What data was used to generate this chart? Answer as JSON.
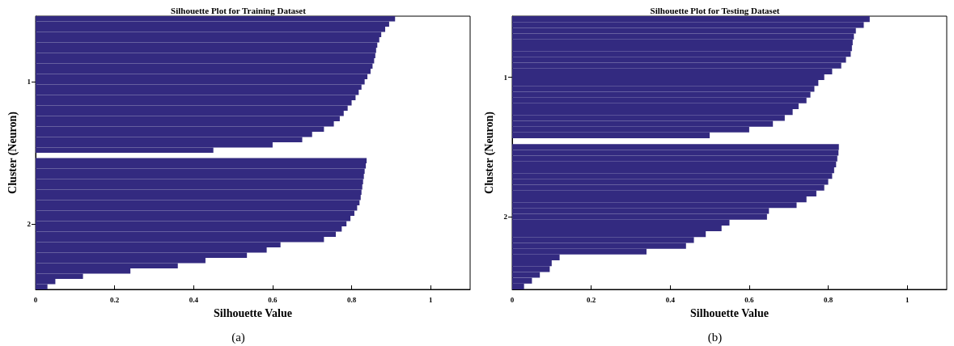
{
  "chart_data": [
    {
      "type": "bar",
      "orientation": "horizontal",
      "title": "Silhouette Plot for Training Dataset",
      "xlabel": "Silhouette Value",
      "ylabel": "Cluster (Neuron)",
      "annotations": [
        "(a)"
      ],
      "categories": [
        null,
        null,
        null,
        null,
        null,
        null,
        null,
        null,
        null,
        null,
        null,
        null,
        "1",
        null,
        null,
        null,
        null,
        null,
        null,
        null,
        null,
        null,
        null,
        null,
        null,
        null,
        null,
        null,
        null,
        null,
        null,
        null,
        null,
        null,
        null,
        null,
        null,
        null,
        null,
        "2",
        null,
        null,
        null,
        null,
        null,
        null,
        null,
        null,
        null,
        null,
        null,
        null
      ],
      "values": [
        0.91,
        0.895,
        0.885,
        0.875,
        0.87,
        0.865,
        0.862,
        0.86,
        0.857,
        0.853,
        0.848,
        0.84,
        0.833,
        0.825,
        0.818,
        0.81,
        0.8,
        0.79,
        0.78,
        0.77,
        0.755,
        0.73,
        0.7,
        0.675,
        0.6,
        0.45,
        null,
        0.838,
        0.836,
        0.833,
        0.831,
        0.829,
        0.827,
        0.825,
        0.823,
        0.82,
        0.814,
        0.807,
        0.797,
        0.787,
        0.775,
        0.76,
        0.73,
        0.62,
        0.585,
        0.535,
        0.43,
        0.36,
        0.24,
        0.12,
        0.05,
        0.03
      ],
      "color": "#332a80",
      "xlim": [
        0,
        1.1
      ],
      "xticks": [
        0,
        0.2,
        0.4,
        0.6,
        0.8,
        1
      ],
      "grid": false
    },
    {
      "type": "bar",
      "orientation": "horizontal",
      "title": "Silhouette Plot for Testing Dataset",
      "xlabel": "Silhouette Value",
      "ylabel": "Cluster (Neuron)",
      "annotations": [
        "(b)"
      ],
      "categories": [
        null,
        null,
        null,
        null,
        null,
        null,
        null,
        null,
        null,
        null,
        "1",
        null,
        null,
        null,
        null,
        null,
        null,
        null,
        null,
        null,
        null,
        null,
        null,
        null,
        null,
        null,
        null,
        null,
        null,
        null,
        null,
        null,
        null,
        null,
        "2",
        null,
        null,
        null,
        null,
        null,
        null,
        null,
        null,
        null,
        null,
        null,
        null
      ],
      "values": [
        0.905,
        0.89,
        0.87,
        0.865,
        0.862,
        0.86,
        0.857,
        0.845,
        0.833,
        0.81,
        0.79,
        0.775,
        0.765,
        0.755,
        0.745,
        0.725,
        0.71,
        0.69,
        0.66,
        0.6,
        0.5,
        null,
        0.827,
        0.826,
        0.823,
        0.82,
        0.815,
        0.81,
        0.8,
        0.79,
        0.77,
        0.745,
        0.72,
        0.65,
        0.645,
        0.55,
        0.53,
        0.49,
        0.46,
        0.44,
        0.34,
        0.12,
        0.1,
        0.095,
        0.07,
        0.05,
        0.03
      ],
      "color": "#332a80",
      "xlim": [
        0,
        1.1
      ],
      "xticks": [
        0,
        0.2,
        0.4,
        0.6,
        0.8,
        1
      ],
      "grid": false
    }
  ]
}
